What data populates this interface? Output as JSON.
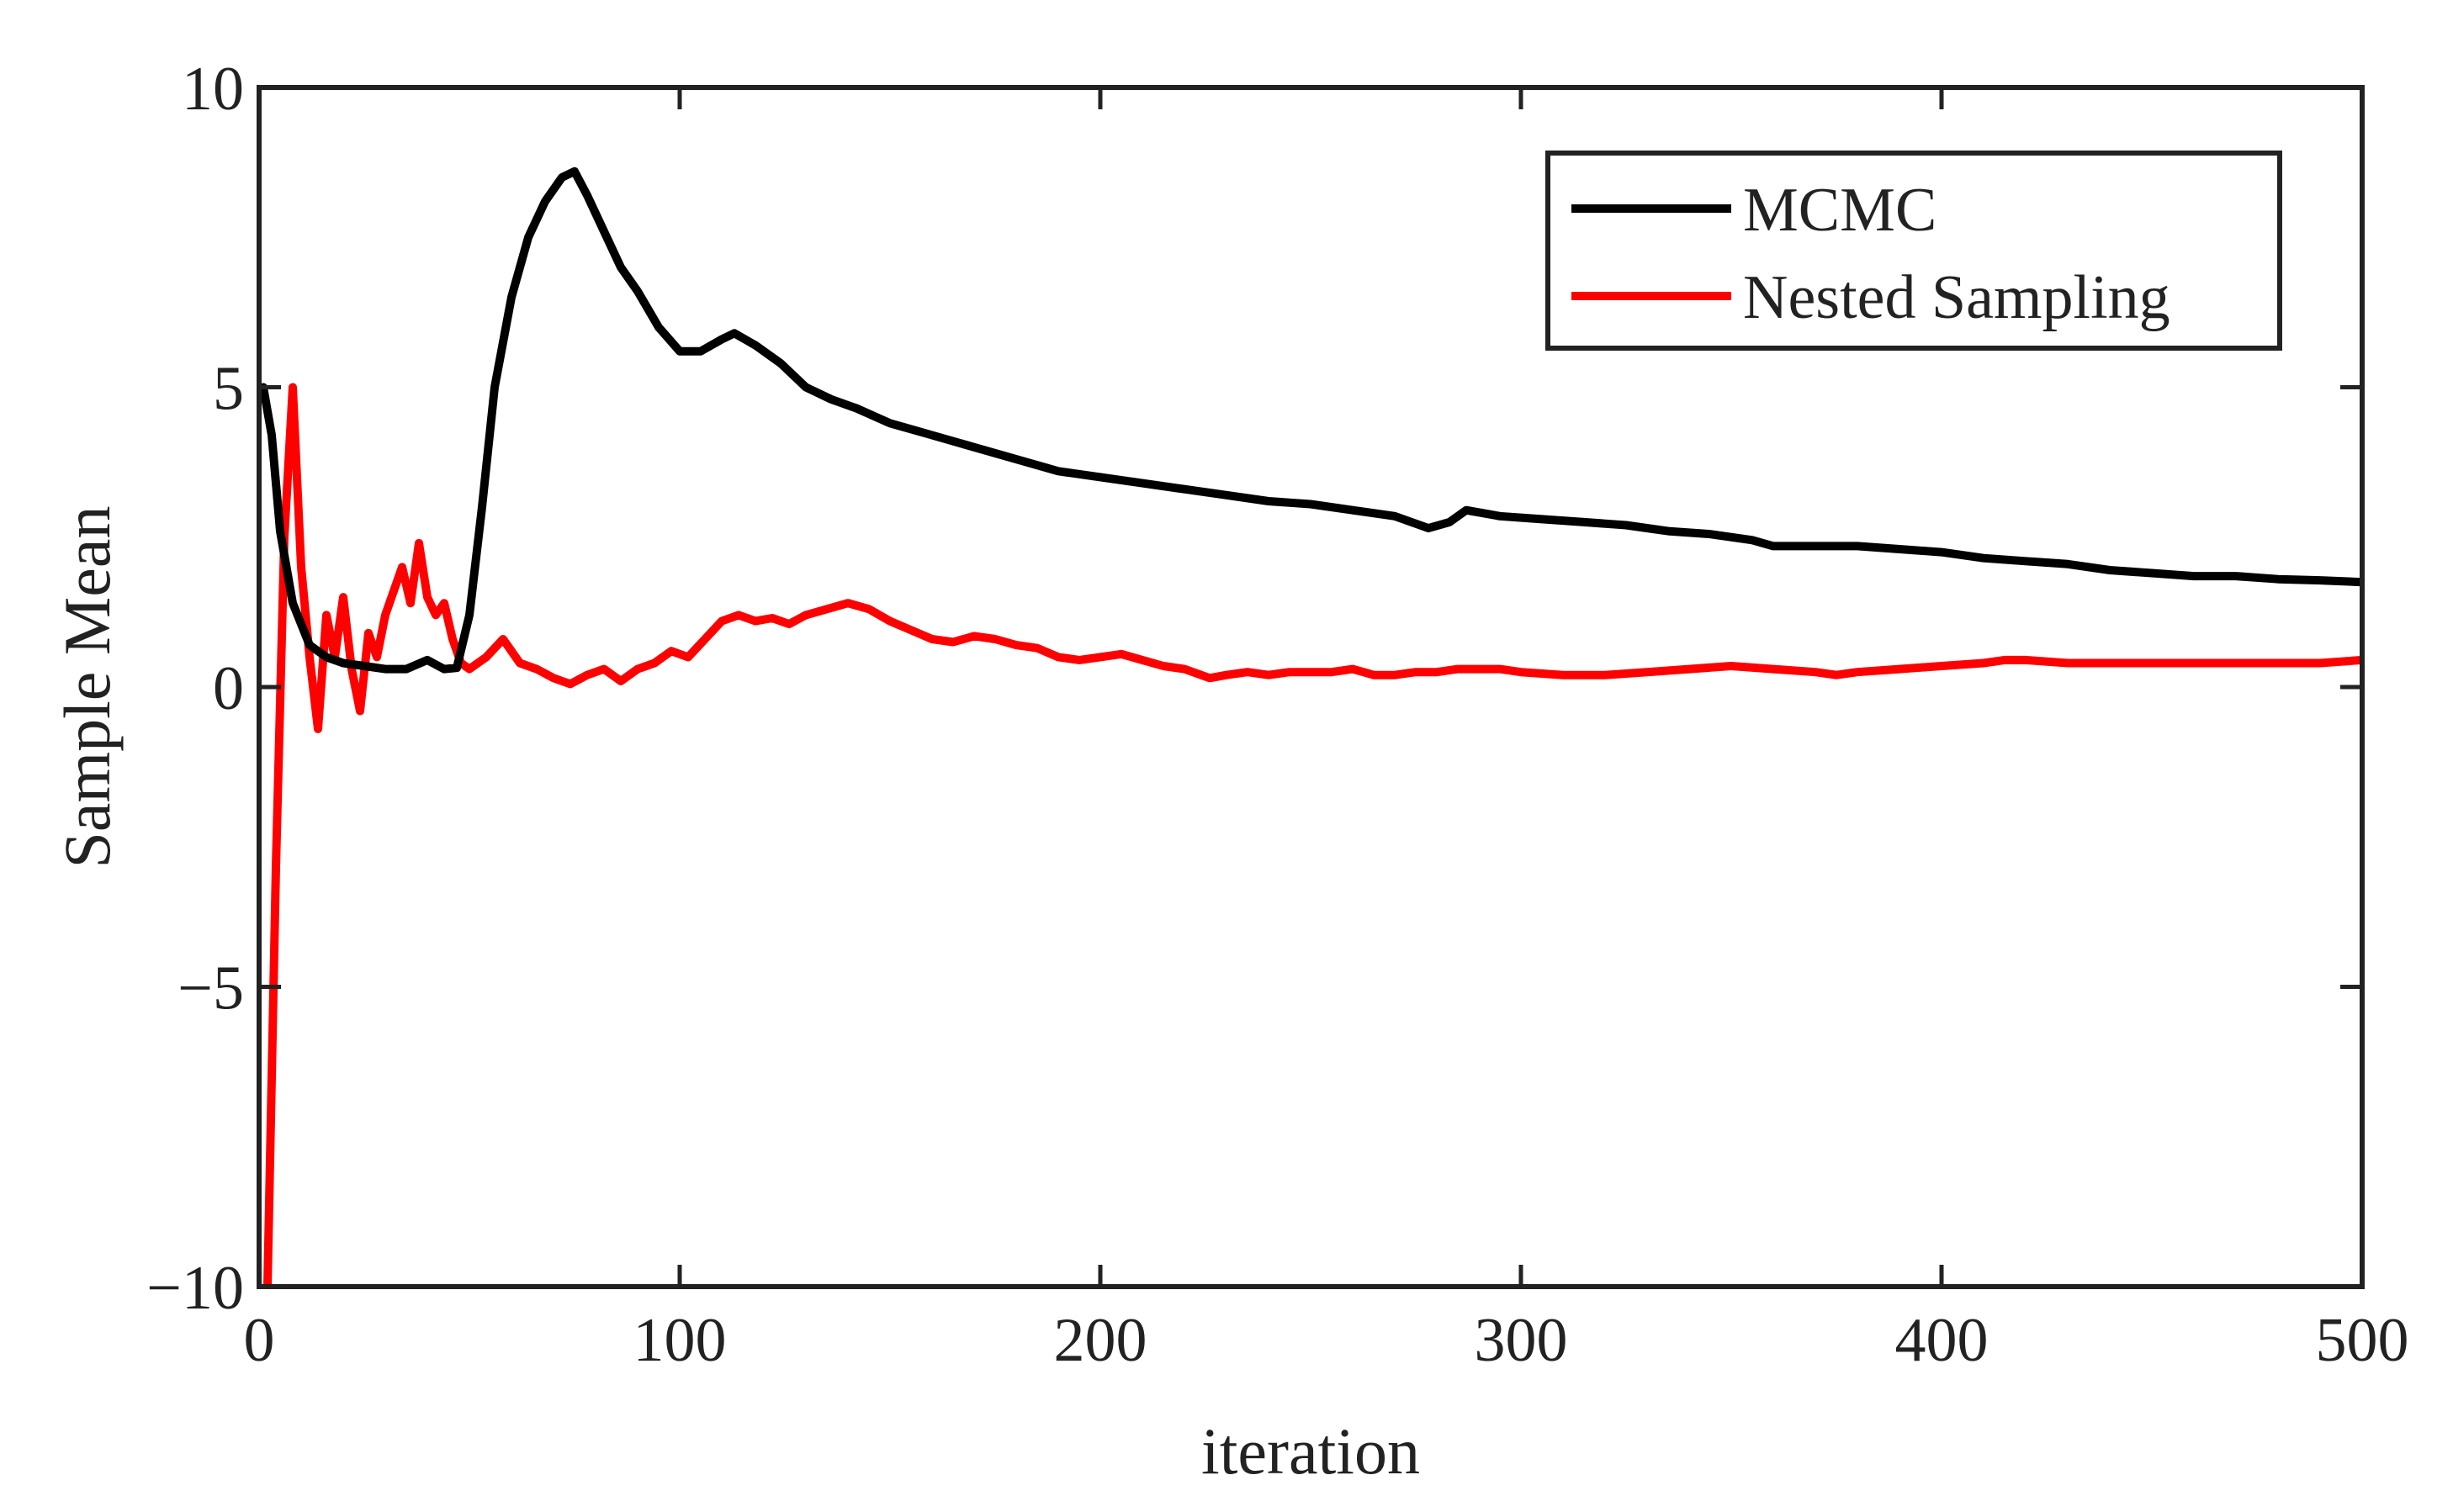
{
  "chart_data": {
    "type": "line",
    "title": "",
    "xlabel": "iteration",
    "ylabel": "Sample Mean",
    "xlim": [
      0,
      500
    ],
    "ylim": [
      -10,
      10
    ],
    "x_ticks": [
      0,
      100,
      200,
      300,
      400,
      500
    ],
    "y_ticks": [
      -10,
      -5,
      0,
      5,
      10
    ],
    "x_tick_labels": [
      "0",
      "100",
      "200",
      "300",
      "400",
      "500"
    ],
    "y_tick_labels": [
      "−10",
      "−5",
      "0",
      "5",
      "10"
    ],
    "grid": false,
    "legend_position": "top-right",
    "series": [
      {
        "name": "MCMC",
        "color": "#000000",
        "x": [
          1,
          3,
          5,
          8,
          12,
          16,
          20,
          25,
          30,
          35,
          40,
          44,
          47,
          50,
          53,
          56,
          60,
          64,
          68,
          72,
          75,
          78,
          82,
          86,
          90,
          95,
          100,
          105,
          110,
          113,
          118,
          124,
          130,
          136,
          142,
          150,
          160,
          170,
          180,
          190,
          200,
          210,
          220,
          230,
          240,
          250,
          260,
          270,
          278,
          283,
          287,
          295,
          305,
          315,
          325,
          335,
          345,
          355,
          360,
          370,
          380,
          390,
          400,
          410,
          420,
          430,
          440,
          450,
          460,
          470,
          480,
          490,
          500
        ],
        "values": [
          5.0,
          4.2,
          2.6,
          1.4,
          0.7,
          0.5,
          0.4,
          0.35,
          0.3,
          0.3,
          0.45,
          0.3,
          0.32,
          1.2,
          3.0,
          5.0,
          6.5,
          7.5,
          8.1,
          8.5,
          8.6,
          8.2,
          7.6,
          7.0,
          6.6,
          6.0,
          5.6,
          5.6,
          5.8,
          5.9,
          5.7,
          5.4,
          5.0,
          4.8,
          4.65,
          4.4,
          4.2,
          4.0,
          3.8,
          3.6,
          3.5,
          3.4,
          3.3,
          3.2,
          3.1,
          3.05,
          2.95,
          2.85,
          2.65,
          2.75,
          2.95,
          2.85,
          2.8,
          2.75,
          2.7,
          2.6,
          2.55,
          2.45,
          2.35,
          2.35,
          2.35,
          2.3,
          2.25,
          2.15,
          2.1,
          2.05,
          1.95,
          1.9,
          1.85,
          1.85,
          1.8,
          1.78,
          1.75
        ]
      },
      {
        "name": "Nested Sampling",
        "color": "#ff0000",
        "x": [
          2,
          4,
          6,
          8,
          10,
          12,
          14,
          16,
          18,
          20,
          22,
          24,
          26,
          28,
          30,
          32,
          34,
          36,
          38,
          40,
          42,
          44,
          46,
          48,
          50,
          54,
          58,
          62,
          66,
          70,
          74,
          78,
          82,
          86,
          90,
          94,
          98,
          102,
          106,
          110,
          114,
          118,
          122,
          126,
          130,
          135,
          140,
          145,
          150,
          155,
          160,
          165,
          170,
          175,
          180,
          185,
          190,
          195,
          200,
          205,
          210,
          215,
          220,
          226,
          230,
          235,
          240,
          245,
          250,
          255,
          260,
          265,
          270,
          275,
          280,
          285,
          290,
          295,
          300,
          310,
          320,
          330,
          340,
          350,
          360,
          370,
          375,
          380,
          390,
          400,
          410,
          415,
          420,
          430,
          440,
          450,
          460,
          470,
          480,
          490,
          500
        ],
        "values": [
          -10.0,
          -3.0,
          2.5,
          5.0,
          2.0,
          0.5,
          -0.7,
          1.2,
          0.5,
          1.5,
          0.3,
          -0.4,
          0.9,
          0.5,
          1.2,
          1.6,
          2.0,
          1.4,
          2.4,
          1.5,
          1.2,
          1.4,
          0.8,
          0.4,
          0.3,
          0.5,
          0.8,
          0.4,
          0.3,
          0.15,
          0.05,
          0.2,
          0.3,
          0.1,
          0.3,
          0.4,
          0.6,
          0.5,
          0.8,
          1.1,
          1.2,
          1.1,
          1.15,
          1.05,
          1.2,
          1.3,
          1.4,
          1.3,
          1.1,
          0.95,
          0.8,
          0.75,
          0.85,
          0.8,
          0.7,
          0.65,
          0.5,
          0.45,
          0.5,
          0.55,
          0.45,
          0.35,
          0.3,
          0.15,
          0.2,
          0.25,
          0.2,
          0.25,
          0.25,
          0.25,
          0.3,
          0.2,
          0.2,
          0.25,
          0.25,
          0.3,
          0.3,
          0.3,
          0.25,
          0.2,
          0.2,
          0.25,
          0.3,
          0.35,
          0.3,
          0.25,
          0.2,
          0.25,
          0.3,
          0.35,
          0.4,
          0.45,
          0.45,
          0.4,
          0.4,
          0.4,
          0.4,
          0.4,
          0.4,
          0.4,
          0.45
        ]
      }
    ]
  }
}
